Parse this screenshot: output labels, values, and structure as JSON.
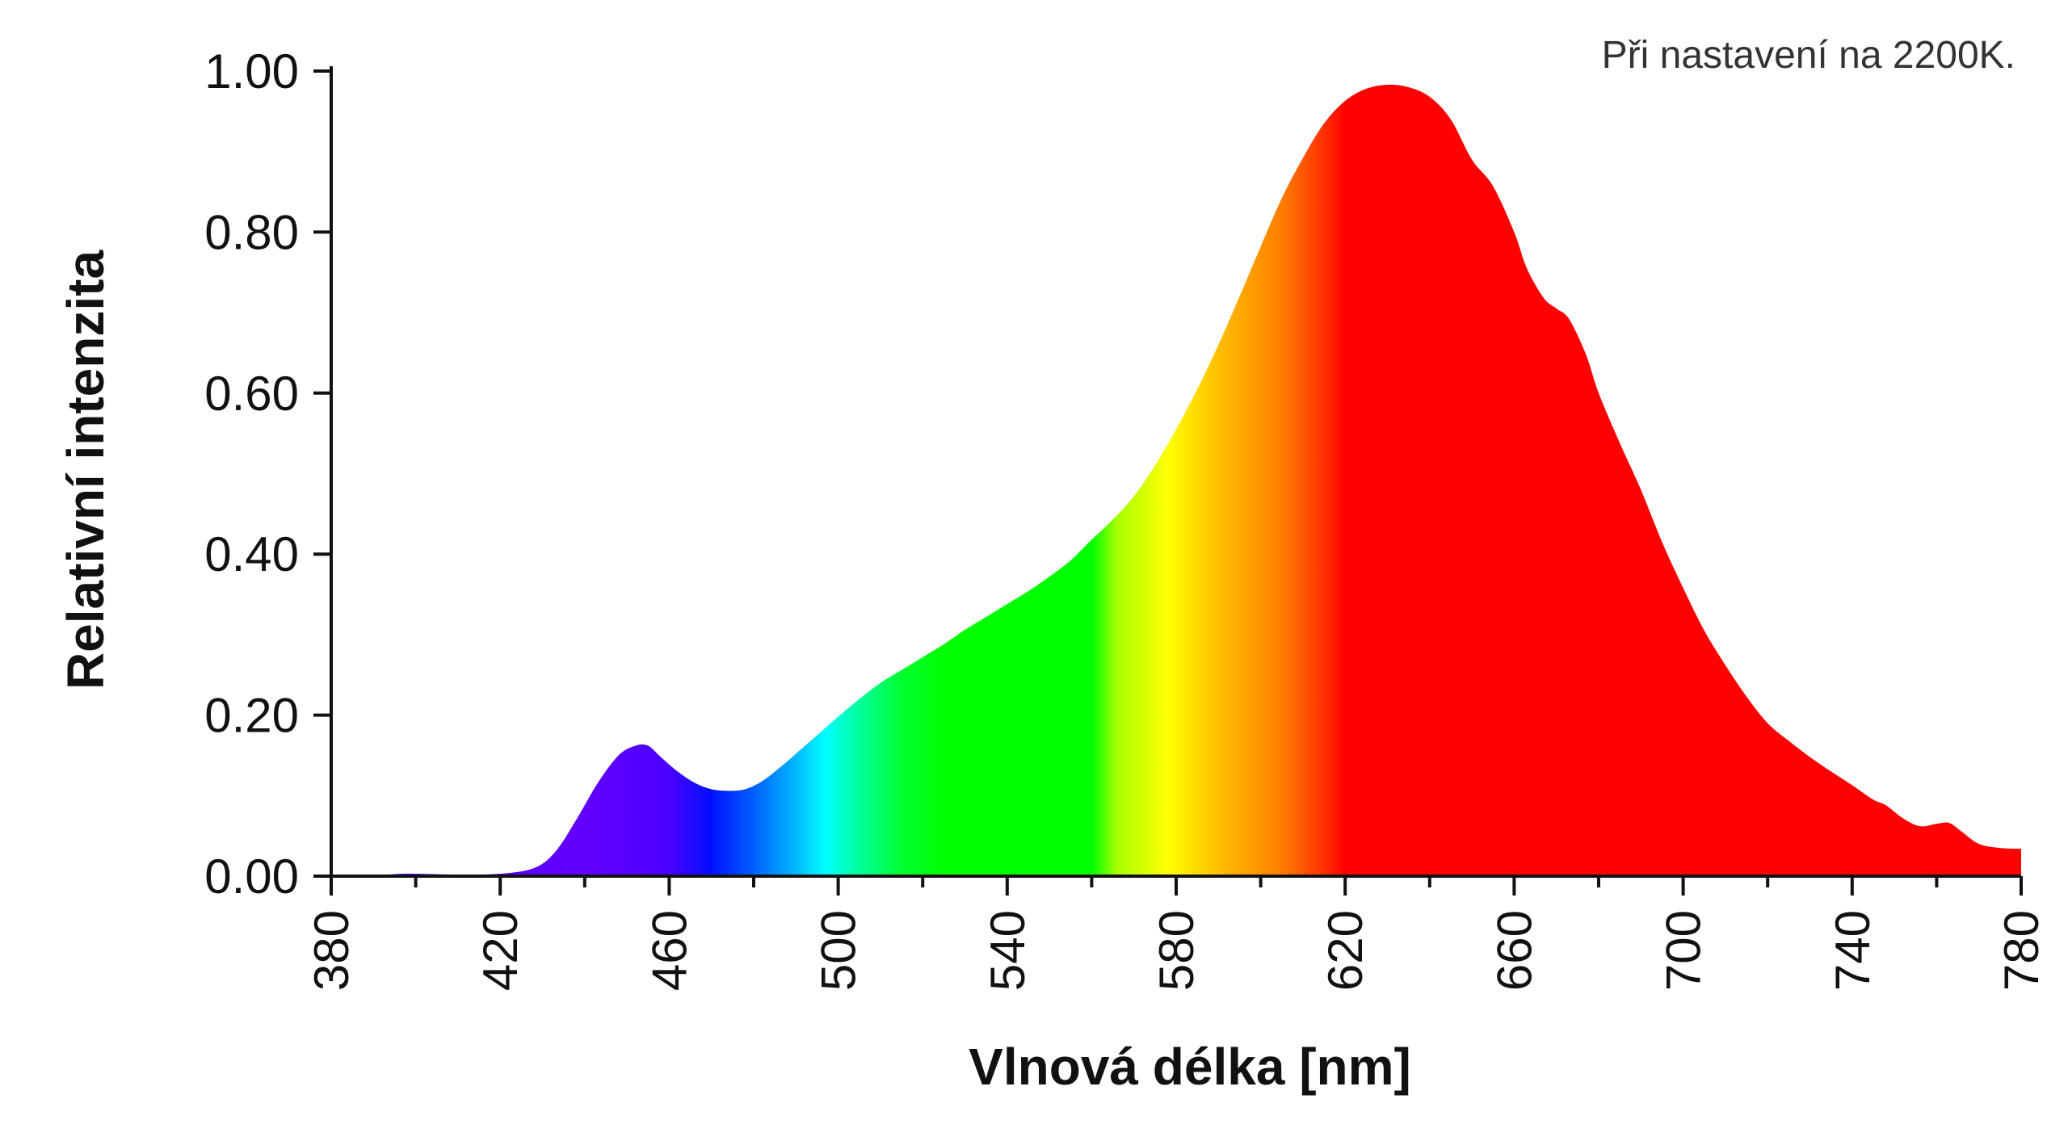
{
  "chart_data": {
    "type": "area",
    "title": "",
    "annotation": "Při nastavení na 2200K.",
    "xlabel": "Vlnová délka [nm]",
    "ylabel": "Relativní intenzita",
    "xlim": [
      380,
      780
    ],
    "ylim": [
      0,
      1
    ],
    "x_ticks": [
      380,
      420,
      460,
      500,
      540,
      580,
      620,
      660,
      700,
      740,
      780
    ],
    "x_tick_labels": [
      "380",
      "420",
      "460",
      "500",
      "540",
      "580",
      "620",
      "660",
      "700",
      "740",
      "780"
    ],
    "y_ticks": [
      0,
      0.2,
      0.4,
      0.6,
      0.8,
      1.0
    ],
    "y_tick_labels": [
      "0.00",
      "0.20",
      "0.40",
      "0.60",
      "0.80",
      "1.00"
    ],
    "grid": false,
    "fill": "visible-spectrum gradient",
    "x": [
      380,
      390,
      398,
      410,
      420,
      428,
      433,
      438,
      443,
      448,
      452,
      455,
      458,
      462,
      466,
      470,
      474,
      478,
      482,
      486,
      490,
      495,
      500,
      505,
      510,
      515,
      520,
      525,
      530,
      535,
      540,
      545,
      550,
      555,
      560,
      565,
      570,
      575,
      580,
      585,
      590,
      595,
      600,
      605,
      610,
      615,
      620,
      625,
      630,
      635,
      640,
      645,
      650,
      655,
      660,
      663,
      667,
      670,
      673,
      677,
      680,
      685,
      690,
      695,
      700,
      705,
      710,
      715,
      720,
      725,
      730,
      735,
      740,
      745,
      748,
      752,
      756,
      760,
      763,
      766,
      770,
      775,
      780
    ],
    "y": [
      0.0,
      0.001,
      0.003,
      0.002,
      0.003,
      0.01,
      0.03,
      0.07,
      0.115,
      0.15,
      0.162,
      0.162,
      0.148,
      0.13,
      0.116,
      0.108,
      0.106,
      0.108,
      0.118,
      0.134,
      0.152,
      0.175,
      0.198,
      0.22,
      0.24,
      0.256,
      0.272,
      0.288,
      0.306,
      0.322,
      0.338,
      0.354,
      0.372,
      0.392,
      0.418,
      0.443,
      0.472,
      0.51,
      0.555,
      0.605,
      0.66,
      0.72,
      0.782,
      0.842,
      0.892,
      0.935,
      0.963,
      0.978,
      0.983,
      0.98,
      0.968,
      0.94,
      0.89,
      0.857,
      0.8,
      0.755,
      0.718,
      0.705,
      0.692,
      0.648,
      0.6,
      0.538,
      0.48,
      0.415,
      0.358,
      0.305,
      0.262,
      0.223,
      0.19,
      0.168,
      0.148,
      0.13,
      0.113,
      0.095,
      0.088,
      0.072,
      0.062,
      0.065,
      0.066,
      0.055,
      0.04,
      0.035,
      0.034
    ]
  }
}
